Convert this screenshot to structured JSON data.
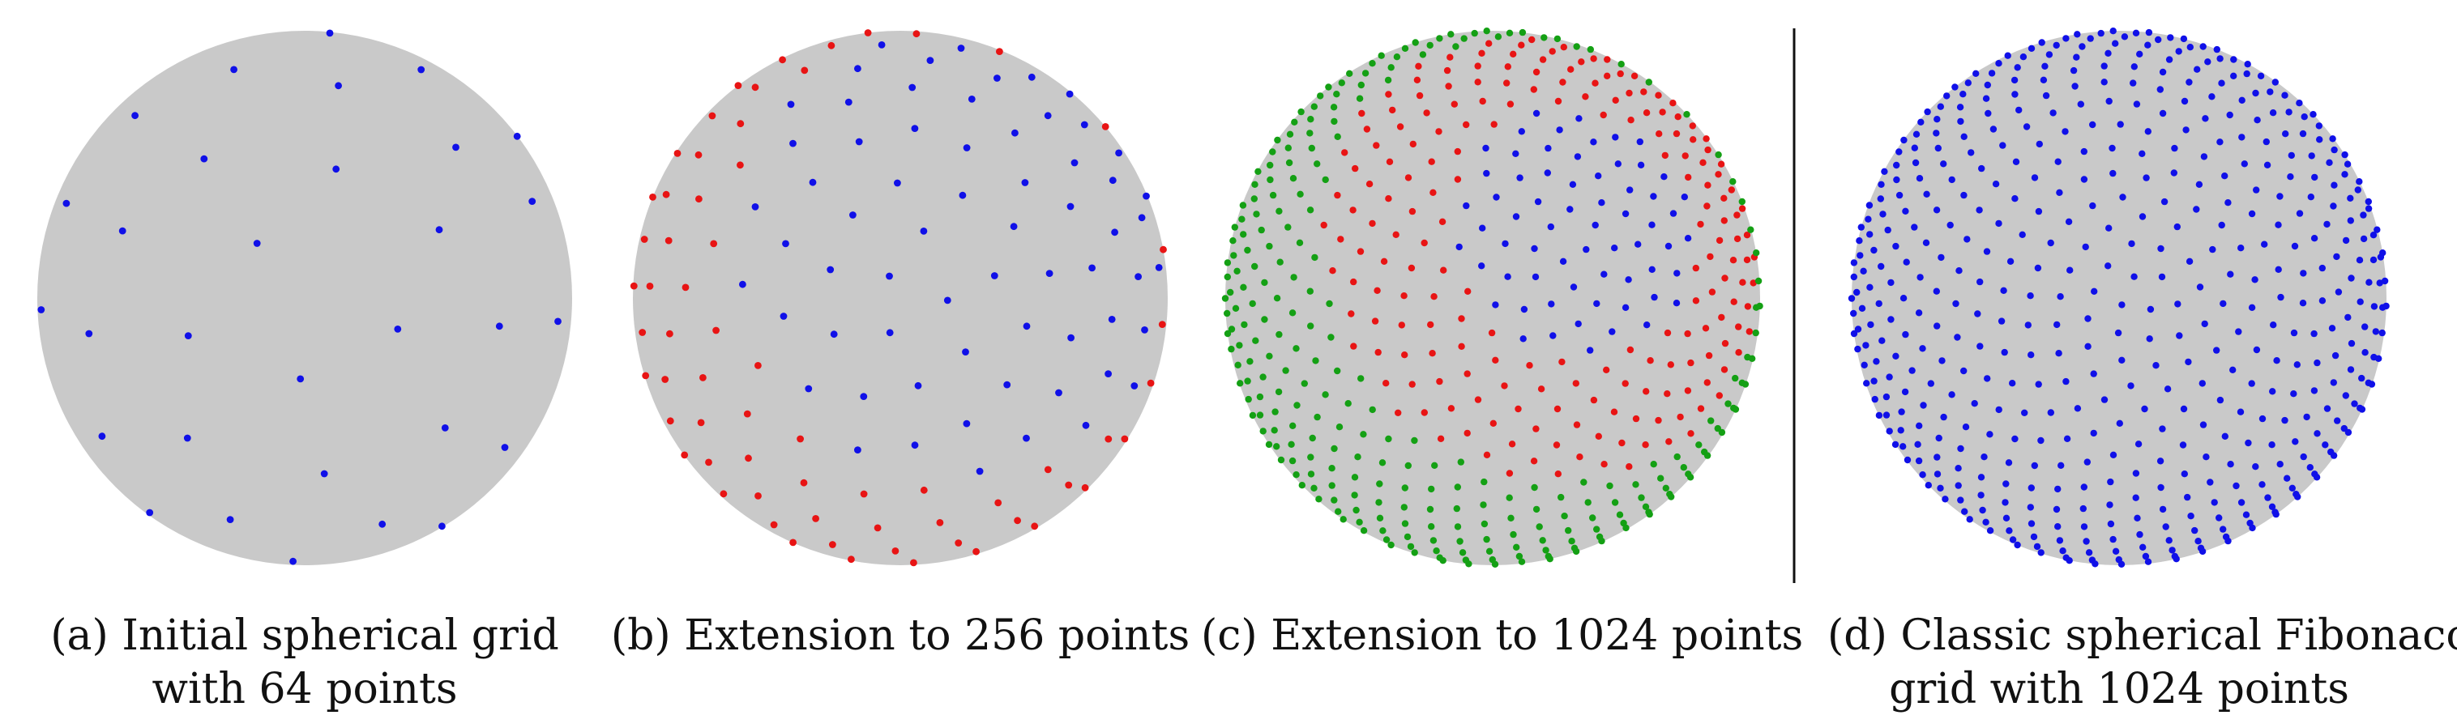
{
  "colors": {
    "sphere": "#c9c9c9",
    "initial_points": "#1010e8",
    "extension_256_points": "#e81414",
    "extension_1024_points": "#14a014",
    "fibonacci_points": "#1010e8",
    "divider": "#111111"
  },
  "panels": [
    {
      "caption_lines": [
        "(a) Initial spherical grid",
        "with 64 points"
      ],
      "point_layers": [
        {
          "color_key": "initial_points",
          "count": 64
        }
      ]
    },
    {
      "caption_lines": [
        "(b) Extension to 256 points"
      ],
      "point_layers": [
        {
          "color_key": "initial_points",
          "count": 64
        },
        {
          "color_key": "extension_256_points",
          "count": 192
        }
      ]
    },
    {
      "caption_lines": [
        "(c) Extension to 1024 points"
      ],
      "point_layers": [
        {
          "color_key": "initial_points",
          "count": 64
        },
        {
          "color_key": "extension_256_points",
          "count": 192
        },
        {
          "color_key": "extension_1024_points",
          "count": 768
        }
      ]
    },
    {
      "caption_lines": [
        "(d) Classic spherical Fibonacci",
        "grid with 1024 points"
      ],
      "point_layers": [
        {
          "color_key": "fibonacci_points",
          "count": 1024
        }
      ]
    }
  ]
}
